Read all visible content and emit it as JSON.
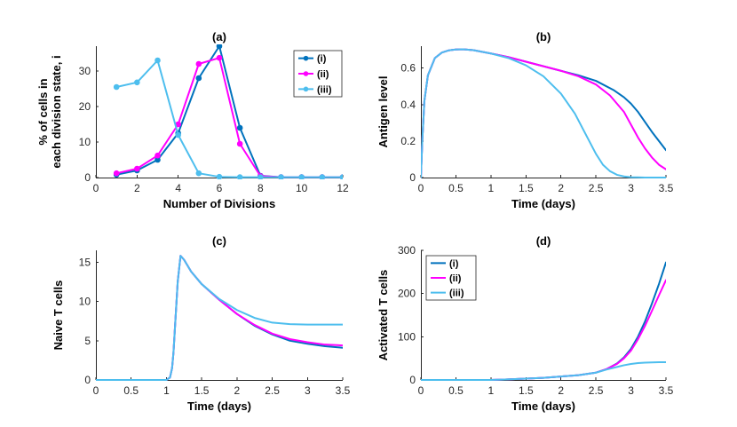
{
  "colors": {
    "i": "#0072BD",
    "ii": "#FF00FF",
    "iii": "#4DBEEE"
  },
  "chart_data": [
    {
      "id": "a",
      "type": "line",
      "title": "(a)",
      "xlabel": "Number of Divisions",
      "ylabel_lines": [
        "% of cells in",
        "each division state, i"
      ],
      "xlim": [
        0,
        12
      ],
      "ylim": [
        0,
        37
      ],
      "xticks": [
        0,
        2,
        4,
        6,
        8,
        10,
        12
      ],
      "xtick_labels": [
        "0",
        "2",
        "4",
        "6",
        "8",
        "10",
        "12"
      ],
      "yticks": [
        0,
        10,
        20,
        30
      ],
      "ytick_labels": [
        "0",
        "10",
        "20",
        "30"
      ],
      "markers": true,
      "legend": {
        "placement": "top-right",
        "entries": [
          "(i)",
          "(ii)",
          "(iii)"
        ]
      },
      "series": [
        {
          "name": "(i)",
          "color_key": "i",
          "x": [
            1,
            2,
            3,
            4,
            5,
            6,
            7,
            8,
            9,
            10,
            11,
            12
          ],
          "y": [
            0.8,
            2.0,
            5.0,
            12.5,
            28.0,
            37.0,
            14.0,
            0.5,
            0.1,
            0.1,
            0.1,
            0.1
          ]
        },
        {
          "name": "(ii)",
          "color_key": "ii",
          "x": [
            1,
            2,
            3,
            4,
            5,
            6,
            7,
            8,
            9,
            10,
            11,
            12
          ],
          "y": [
            1.2,
            2.5,
            6.2,
            15.0,
            32.0,
            33.7,
            9.5,
            0.4,
            0.1,
            0.1,
            0.1,
            0.1
          ]
        },
        {
          "name": "(iii)",
          "color_key": "iii",
          "x": [
            1,
            2,
            3,
            4,
            5,
            6,
            7,
            8,
            9,
            10,
            11,
            12
          ],
          "y": [
            25.5,
            26.8,
            33.0,
            12.0,
            1.2,
            0.2,
            0.1,
            0.1,
            0.1,
            0.1,
            0.1,
            0.1
          ]
        }
      ]
    },
    {
      "id": "b",
      "type": "line",
      "title": "(b)",
      "xlabel": "Time (days)",
      "ylabel_lines": [
        "Antigen level"
      ],
      "xlim": [
        0,
        3.5
      ],
      "ylim": [
        0,
        0.72
      ],
      "xticks": [
        0,
        0.5,
        1,
        1.5,
        2,
        2.5,
        3,
        3.5
      ],
      "xtick_labels": [
        "0",
        "0.5",
        "1",
        "1.5",
        "2",
        "2.5",
        "3",
        "3.5"
      ],
      "yticks": [
        0,
        0.2,
        0.4,
        0.6
      ],
      "ytick_labels": [
        "0",
        "0.2",
        "0.4",
        "0.6"
      ],
      "markers": false,
      "series": [
        {
          "name": "(i)",
          "color_key": "i",
          "x": [
            0,
            0.02,
            0.05,
            0.1,
            0.2,
            0.3,
            0.4,
            0.5,
            0.6,
            0.75,
            1.0,
            1.25,
            1.5,
            1.75,
            2.0,
            2.25,
            2.5,
            2.75,
            2.9,
            3.0,
            3.1,
            3.2,
            3.3,
            3.4,
            3.5
          ],
          "y": [
            0,
            0.2,
            0.42,
            0.56,
            0.655,
            0.685,
            0.697,
            0.702,
            0.703,
            0.698,
            0.68,
            0.66,
            0.635,
            0.61,
            0.585,
            0.56,
            0.53,
            0.48,
            0.44,
            0.405,
            0.36,
            0.305,
            0.25,
            0.2,
            0.15
          ]
        },
        {
          "name": "(ii)",
          "color_key": "ii",
          "x": [
            0,
            0.02,
            0.05,
            0.1,
            0.2,
            0.3,
            0.4,
            0.5,
            0.6,
            0.75,
            1.0,
            1.25,
            1.5,
            1.75,
            2.0,
            2.25,
            2.5,
            2.7,
            2.9,
            3.0,
            3.1,
            3.2,
            3.3,
            3.4,
            3.5
          ],
          "y": [
            0,
            0.2,
            0.42,
            0.56,
            0.655,
            0.685,
            0.697,
            0.702,
            0.703,
            0.698,
            0.68,
            0.66,
            0.635,
            0.61,
            0.585,
            0.555,
            0.51,
            0.45,
            0.36,
            0.29,
            0.22,
            0.16,
            0.11,
            0.07,
            0.045
          ]
        },
        {
          "name": "(iii)",
          "color_key": "iii",
          "x": [
            0,
            0.02,
            0.05,
            0.1,
            0.2,
            0.3,
            0.4,
            0.5,
            0.6,
            0.75,
            1.0,
            1.25,
            1.5,
            1.75,
            2.0,
            2.2,
            2.35,
            2.5,
            2.6,
            2.7,
            2.8,
            2.9,
            3.0,
            3.1,
            3.2,
            3.35,
            3.5
          ],
          "y": [
            0,
            0.2,
            0.42,
            0.56,
            0.655,
            0.685,
            0.697,
            0.702,
            0.703,
            0.698,
            0.68,
            0.655,
            0.615,
            0.555,
            0.46,
            0.35,
            0.24,
            0.13,
            0.07,
            0.035,
            0.015,
            0.006,
            0.002,
            0.001,
            0,
            0,
            0
          ]
        }
      ]
    },
    {
      "id": "c",
      "type": "line",
      "title": "(c)",
      "xlabel": "Time (days)",
      "ylabel_lines": [
        "Naive T cells"
      ],
      "xlim": [
        0,
        3.5
      ],
      "ylim": [
        0,
        16.5
      ],
      "xticks": [
        0,
        0.5,
        1,
        1.5,
        2,
        2.5,
        3,
        3.5
      ],
      "xtick_labels": [
        "0",
        "0.5",
        "1",
        "1.5",
        "2",
        "2.5",
        "3",
        "3.5"
      ],
      "yticks": [
        0,
        5,
        10,
        15
      ],
      "ytick_labels": [
        "0",
        "5",
        "10",
        "15"
      ],
      "markers": false,
      "series": [
        {
          "name": "(i)",
          "color_key": "i",
          "x": [
            0,
            1.0,
            1.05,
            1.08,
            1.1,
            1.13,
            1.16,
            1.2,
            1.25,
            1.35,
            1.5,
            1.75,
            2.0,
            2.25,
            2.5,
            2.75,
            3.0,
            3.25,
            3.5
          ],
          "y": [
            0,
            0,
            0.3,
            1.5,
            3.5,
            8.0,
            12.5,
            15.8,
            15.3,
            13.8,
            12.2,
            10.2,
            8.4,
            6.9,
            5.8,
            5.0,
            4.6,
            4.3,
            4.1
          ]
        },
        {
          "name": "(ii)",
          "color_key": "ii",
          "x": [
            0,
            1.0,
            1.05,
            1.08,
            1.1,
            1.13,
            1.16,
            1.2,
            1.25,
            1.35,
            1.5,
            1.75,
            2.0,
            2.25,
            2.5,
            2.75,
            3.0,
            3.25,
            3.5
          ],
          "y": [
            0,
            0,
            0.3,
            1.5,
            3.5,
            8.0,
            12.5,
            15.8,
            15.3,
            13.8,
            12.2,
            10.2,
            8.4,
            7.0,
            5.9,
            5.2,
            4.8,
            4.5,
            4.4
          ]
        },
        {
          "name": "(iii)",
          "color_key": "iii",
          "x": [
            0,
            1.0,
            1.05,
            1.08,
            1.1,
            1.13,
            1.16,
            1.2,
            1.25,
            1.35,
            1.5,
            1.75,
            2.0,
            2.25,
            2.5,
            2.75,
            3.0,
            3.25,
            3.5
          ],
          "y": [
            0,
            0,
            0.3,
            1.5,
            3.5,
            8.0,
            12.5,
            15.8,
            15.3,
            13.8,
            12.2,
            10.3,
            8.9,
            7.9,
            7.3,
            7.1,
            7.05,
            7.05,
            7.05
          ]
        }
      ]
    },
    {
      "id": "d",
      "type": "line",
      "title": "(d)",
      "xlabel": "Time (days)",
      "ylabel_lines": [
        "Activated T cells"
      ],
      "xlim": [
        0,
        3.5
      ],
      "ylim": [
        0,
        300
      ],
      "xticks": [
        0,
        0.5,
        1,
        1.5,
        2,
        2.5,
        3,
        3.5
      ],
      "xtick_labels": [
        "0",
        "0.5",
        "1",
        "1.5",
        "2",
        "2.5",
        "3",
        "3.5"
      ],
      "yticks": [
        0,
        100,
        200,
        300
      ],
      "ytick_labels": [
        "0",
        "100",
        "200",
        "300"
      ],
      "markers": false,
      "legend": {
        "placement": "top-left",
        "entries": [
          "(i)",
          "(ii)",
          "(iii)"
        ]
      },
      "series": [
        {
          "name": "(i)",
          "color_key": "i",
          "x": [
            0,
            1.0,
            1.2,
            1.5,
            1.75,
            2.0,
            2.25,
            2.5,
            2.65,
            2.8,
            2.9,
            3.0,
            3.1,
            3.2,
            3.3,
            3.4,
            3.5
          ],
          "y": [
            0,
            0,
            1,
            3,
            5,
            8,
            11,
            17,
            25,
            38,
            52,
            72,
            100,
            135,
            177,
            222,
            272
          ]
        },
        {
          "name": "(ii)",
          "color_key": "ii",
          "x": [
            0,
            1.0,
            1.2,
            1.5,
            1.75,
            2.0,
            2.25,
            2.5,
            2.65,
            2.8,
            2.9,
            3.0,
            3.1,
            3.2,
            3.3,
            3.4,
            3.5
          ],
          "y": [
            0,
            0,
            1,
            3,
            5,
            8,
            11,
            17,
            25,
            37,
            50,
            68,
            94,
            125,
            160,
            196,
            231
          ]
        },
        {
          "name": "(iii)",
          "color_key": "iii",
          "x": [
            0,
            1.0,
            1.2,
            1.5,
            1.75,
            2.0,
            2.25,
            2.5,
            2.65,
            2.8,
            2.9,
            3.0,
            3.1,
            3.2,
            3.3,
            3.4,
            3.5
          ],
          "y": [
            0,
            0,
            1,
            3,
            5,
            8,
            11,
            17,
            24,
            30,
            34,
            37,
            39,
            40,
            40.5,
            41,
            41
          ]
        }
      ]
    }
  ]
}
